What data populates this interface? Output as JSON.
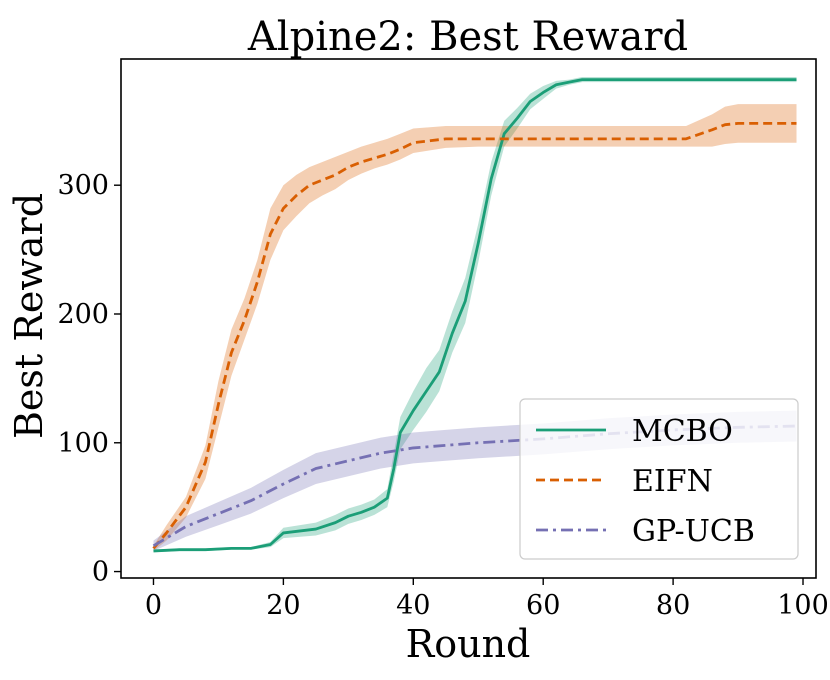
{
  "chart_data": {
    "type": "line",
    "title": "Alpine2: Best Reward",
    "xlabel": "Round",
    "ylabel": "Best Reward",
    "xlim": [
      -5,
      102
    ],
    "ylim": [
      -5,
      398
    ],
    "xticks": [
      0,
      20,
      40,
      60,
      80,
      100
    ],
    "yticks": [
      0,
      100,
      200,
      300
    ],
    "grid": false,
    "legend_position": "lower-right",
    "series": [
      {
        "name": "MCBO",
        "color": "#1b9e77",
        "dash": "solid",
        "x": [
          0,
          4,
          8,
          12,
          15,
          18,
          20,
          25,
          28,
          30,
          32,
          34,
          36,
          37,
          38,
          40,
          42,
          44,
          46,
          48,
          50,
          52,
          54,
          56,
          58,
          60,
          62,
          64,
          66,
          70,
          80,
          90,
          99
        ],
        "y": [
          16,
          17,
          17,
          18,
          18,
          21,
          30,
          33,
          38,
          43,
          46,
          50,
          57,
          80,
          108,
          125,
          140,
          155,
          185,
          210,
          255,
          305,
          340,
          352,
          365,
          372,
          378,
          380,
          382,
          382,
          382,
          382,
          382
        ],
        "lo": [
          15,
          16,
          16,
          17,
          17,
          19,
          26,
          28,
          32,
          37,
          40,
          44,
          50,
          70,
          95,
          110,
          124,
          140,
          170,
          193,
          240,
          292,
          330,
          344,
          359,
          367,
          375,
          378,
          380,
          380,
          380,
          380,
          380
        ],
        "hi": [
          17,
          18,
          18,
          19,
          19,
          23,
          34,
          38,
          44,
          49,
          52,
          56,
          64,
          92,
          120,
          140,
          158,
          172,
          202,
          228,
          270,
          318,
          350,
          360,
          371,
          377,
          381,
          382,
          384,
          384,
          384,
          384,
          384
        ]
      },
      {
        "name": "EIFN",
        "color": "#d95f02",
        "dash": "dashed",
        "x": [
          0,
          2,
          5,
          8,
          10,
          12,
          14,
          16,
          18,
          20,
          22,
          24,
          26,
          28,
          30,
          32,
          34,
          36,
          38,
          40,
          45,
          50,
          60,
          70,
          82,
          86,
          88,
          90,
          99
        ],
        "y": [
          18,
          30,
          50,
          85,
          130,
          170,
          195,
          225,
          262,
          282,
          292,
          300,
          304,
          308,
          314,
          318,
          321,
          324,
          328,
          333,
          336,
          336,
          336,
          336,
          336,
          343,
          347,
          348,
          348
        ],
        "lo": [
          16,
          24,
          42,
          72,
          112,
          152,
          180,
          208,
          242,
          265,
          276,
          286,
          292,
          297,
          304,
          309,
          313,
          316,
          320,
          325,
          329,
          330,
          330,
          330,
          330,
          330,
          332,
          333,
          333
        ],
        "hi": [
          20,
          36,
          58,
          98,
          148,
          188,
          212,
          242,
          282,
          300,
          308,
          314,
          318,
          322,
          326,
          330,
          333,
          336,
          340,
          344,
          346,
          346,
          346,
          346,
          346,
          355,
          361,
          363,
          363
        ]
      },
      {
        "name": "GP-UCB",
        "color": "#7570b3",
        "dash": "dashdot",
        "x": [
          0,
          5,
          10,
          15,
          20,
          25,
          30,
          35,
          40,
          45,
          50,
          60,
          70,
          80,
          90,
          99
        ],
        "y": [
          20,
          35,
          45,
          55,
          68,
          80,
          86,
          92,
          96,
          98,
          100,
          103,
          107,
          110,
          112,
          113
        ],
        "lo": [
          16,
          27,
          36,
          45,
          57,
          68,
          74,
          80,
          84,
          86,
          88,
          91,
          95,
          98,
          100,
          101
        ],
        "hi": [
          24,
          43,
          54,
          65,
          79,
          92,
          98,
          104,
          108,
          110,
          112,
          115,
          119,
          122,
          124,
          125
        ]
      }
    ]
  }
}
